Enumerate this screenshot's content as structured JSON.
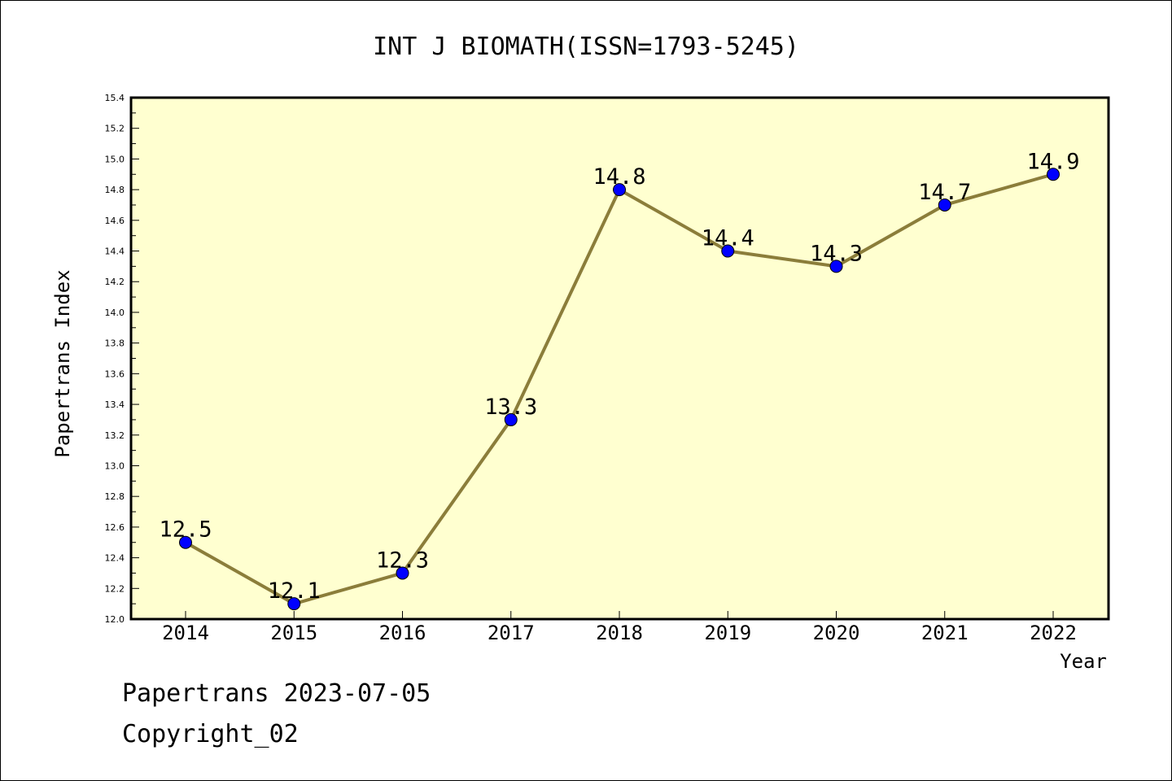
{
  "chart_data": {
    "type": "line",
    "title": "INT J BIOMATH(ISSN=1793-5245)",
    "xlabel": "Year",
    "ylabel": "Papertrans Index",
    "categories": [
      "2014",
      "2015",
      "2016",
      "2017",
      "2018",
      "2019",
      "2020",
      "2021",
      "2022"
    ],
    "series": [
      {
        "values": [
          12.5,
          12.1,
          12.3,
          13.3,
          14.8,
          14.4,
          14.3,
          14.7,
          14.9
        ]
      }
    ],
    "data_labels": [
      "12.5",
      "12.1",
      "12.3",
      "13.3",
      "14.8",
      "14.4",
      "14.3",
      "14.7",
      "14.9"
    ],
    "ylim": [
      12.0,
      15.4
    ],
    "yticks": [
      "12.0",
      "12.2",
      "12.4",
      "12.6",
      "12.8",
      "13.0",
      "13.2",
      "13.4",
      "13.6",
      "13.8",
      "14.0",
      "14.2",
      "14.4",
      "14.6",
      "14.8",
      "15.0",
      "15.2",
      "15.4"
    ],
    "grid": false,
    "colors": {
      "plot_background": "#ffffd0",
      "line": "#8b7d3a",
      "marker": "#0000ff"
    }
  },
  "footer": {
    "source": "Papertrans 2023-07-05",
    "copyright": "Copyright_02"
  }
}
